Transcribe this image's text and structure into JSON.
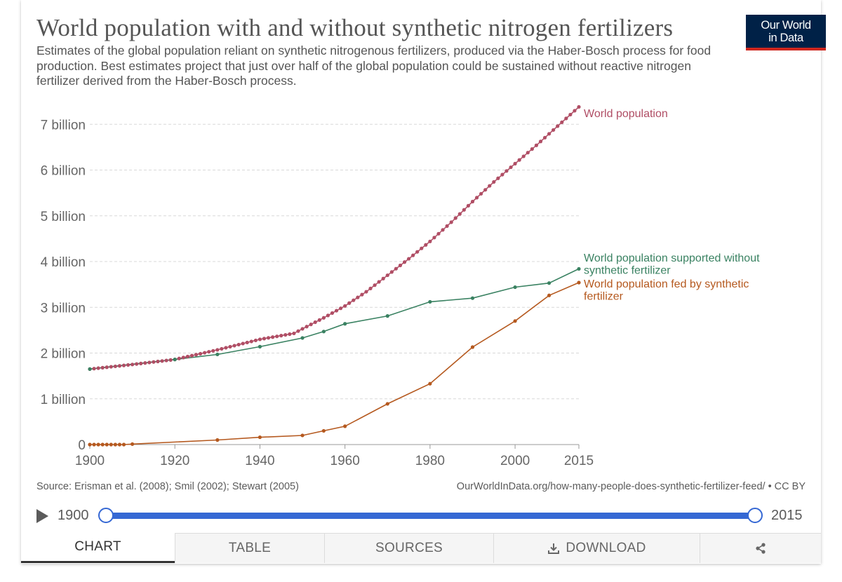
{
  "header": {
    "title": "World population with and without synthetic nitrogen fertilizers",
    "subtitle": "Estimates of the global population reliant on synthetic nitrogenous fertilizers, produced via the Haber-Bosch process for food production. Best estimates project that just over half of the global population could be sustained without reactive nitrogen fertilizer derived from the Haber-Bosch process.",
    "logo_line1": "Our World",
    "logo_line2": "in Data"
  },
  "colors": {
    "world_population": "#b04e65",
    "without_fertilizer": "#3a8262",
    "fed_by_fertilizer": "#b5591f",
    "slider": "#3568d4",
    "logo_bg": "#002147",
    "logo_accent": "#ce261e"
  },
  "chart_data": {
    "type": "line",
    "x_ticks": [
      1900,
      1920,
      1940,
      1960,
      1980,
      2000,
      2015
    ],
    "y_ticks": [
      {
        "value": 0,
        "label": "0"
      },
      {
        "value": 1,
        "label": "1 billion"
      },
      {
        "value": 2,
        "label": "2 billion"
      },
      {
        "value": 3,
        "label": "3 billion"
      },
      {
        "value": 4,
        "label": "4 billion"
      },
      {
        "value": 5,
        "label": "5 billion"
      },
      {
        "value": 6,
        "label": "6 billion"
      },
      {
        "value": 7,
        "label": "7 billion"
      }
    ],
    "xlim": [
      1900,
      2015
    ],
    "ylim": [
      0,
      7.5
    ],
    "grid": "horizontal dashed",
    "series": [
      {
        "name": "World population",
        "color_key": "world_population",
        "points": [
          [
            1900,
            1.65
          ],
          [
            1910,
            1.75
          ],
          [
            1920,
            1.86
          ],
          [
            1930,
            2.07
          ],
          [
            1940,
            2.3
          ],
          [
            1948,
            2.43
          ],
          [
            1950,
            2.53
          ],
          [
            1955,
            2.77
          ],
          [
            1960,
            3.03
          ],
          [
            1965,
            3.34
          ],
          [
            1970,
            3.7
          ],
          [
            1975,
            4.06
          ],
          [
            1980,
            4.44
          ],
          [
            1985,
            4.86
          ],
          [
            1990,
            5.31
          ],
          [
            1995,
            5.74
          ],
          [
            2000,
            6.14
          ],
          [
            2005,
            6.54
          ],
          [
            2010,
            6.96
          ],
          [
            2015,
            7.38
          ]
        ]
      },
      {
        "name": "World population supported without synthetic fertilizer",
        "label_lines": [
          "World population supported without",
          "synthetic fertilizer"
        ],
        "color_key": "without_fertilizer",
        "points": [
          [
            1900,
            1.65
          ],
          [
            1920,
            1.86
          ],
          [
            1930,
            1.97
          ],
          [
            1940,
            2.14
          ],
          [
            1950,
            2.33
          ],
          [
            1955,
            2.47
          ],
          [
            1960,
            2.64
          ],
          [
            1970,
            2.81
          ],
          [
            1980,
            3.12
          ],
          [
            1990,
            3.2
          ],
          [
            2000,
            3.44
          ],
          [
            2008,
            3.53
          ],
          [
            2015,
            3.84
          ]
        ]
      },
      {
        "name": "World population fed by synthetic fertilizer",
        "label_lines": [
          "World population fed by synthetic",
          "fertilizer"
        ],
        "color_key": "fed_by_fertilizer",
        "points": [
          [
            1900,
            0.0
          ],
          [
            1901,
            0.0
          ],
          [
            1902,
            0.0
          ],
          [
            1903,
            0.0
          ],
          [
            1904,
            0.0
          ],
          [
            1905,
            0.0
          ],
          [
            1906,
            0.0
          ],
          [
            1907,
            0.0
          ],
          [
            1908,
            0.0
          ],
          [
            1910,
            0.01
          ],
          [
            1930,
            0.1
          ],
          [
            1940,
            0.16
          ],
          [
            1950,
            0.2
          ],
          [
            1955,
            0.3
          ],
          [
            1960,
            0.4
          ],
          [
            1970,
            0.89
          ],
          [
            1980,
            1.33
          ],
          [
            1990,
            2.13
          ],
          [
            2000,
            2.7
          ],
          [
            2008,
            3.26
          ],
          [
            2015,
            3.54
          ]
        ]
      }
    ]
  },
  "footer": {
    "source": "Source: Erisman et al. (2008); Smil (2002); Stewart (2005)",
    "url": "OurWorldInData.org/how-many-people-does-synthetic-fertilizer-feed/ • CC BY"
  },
  "timeline": {
    "start_label": "1900",
    "end_label": "2015",
    "start_value": 1900,
    "end_value": 2015
  },
  "tabs": {
    "chart": "CHART",
    "table": "TABLE",
    "sources": "SOURCES",
    "download": "DOWNLOAD"
  }
}
